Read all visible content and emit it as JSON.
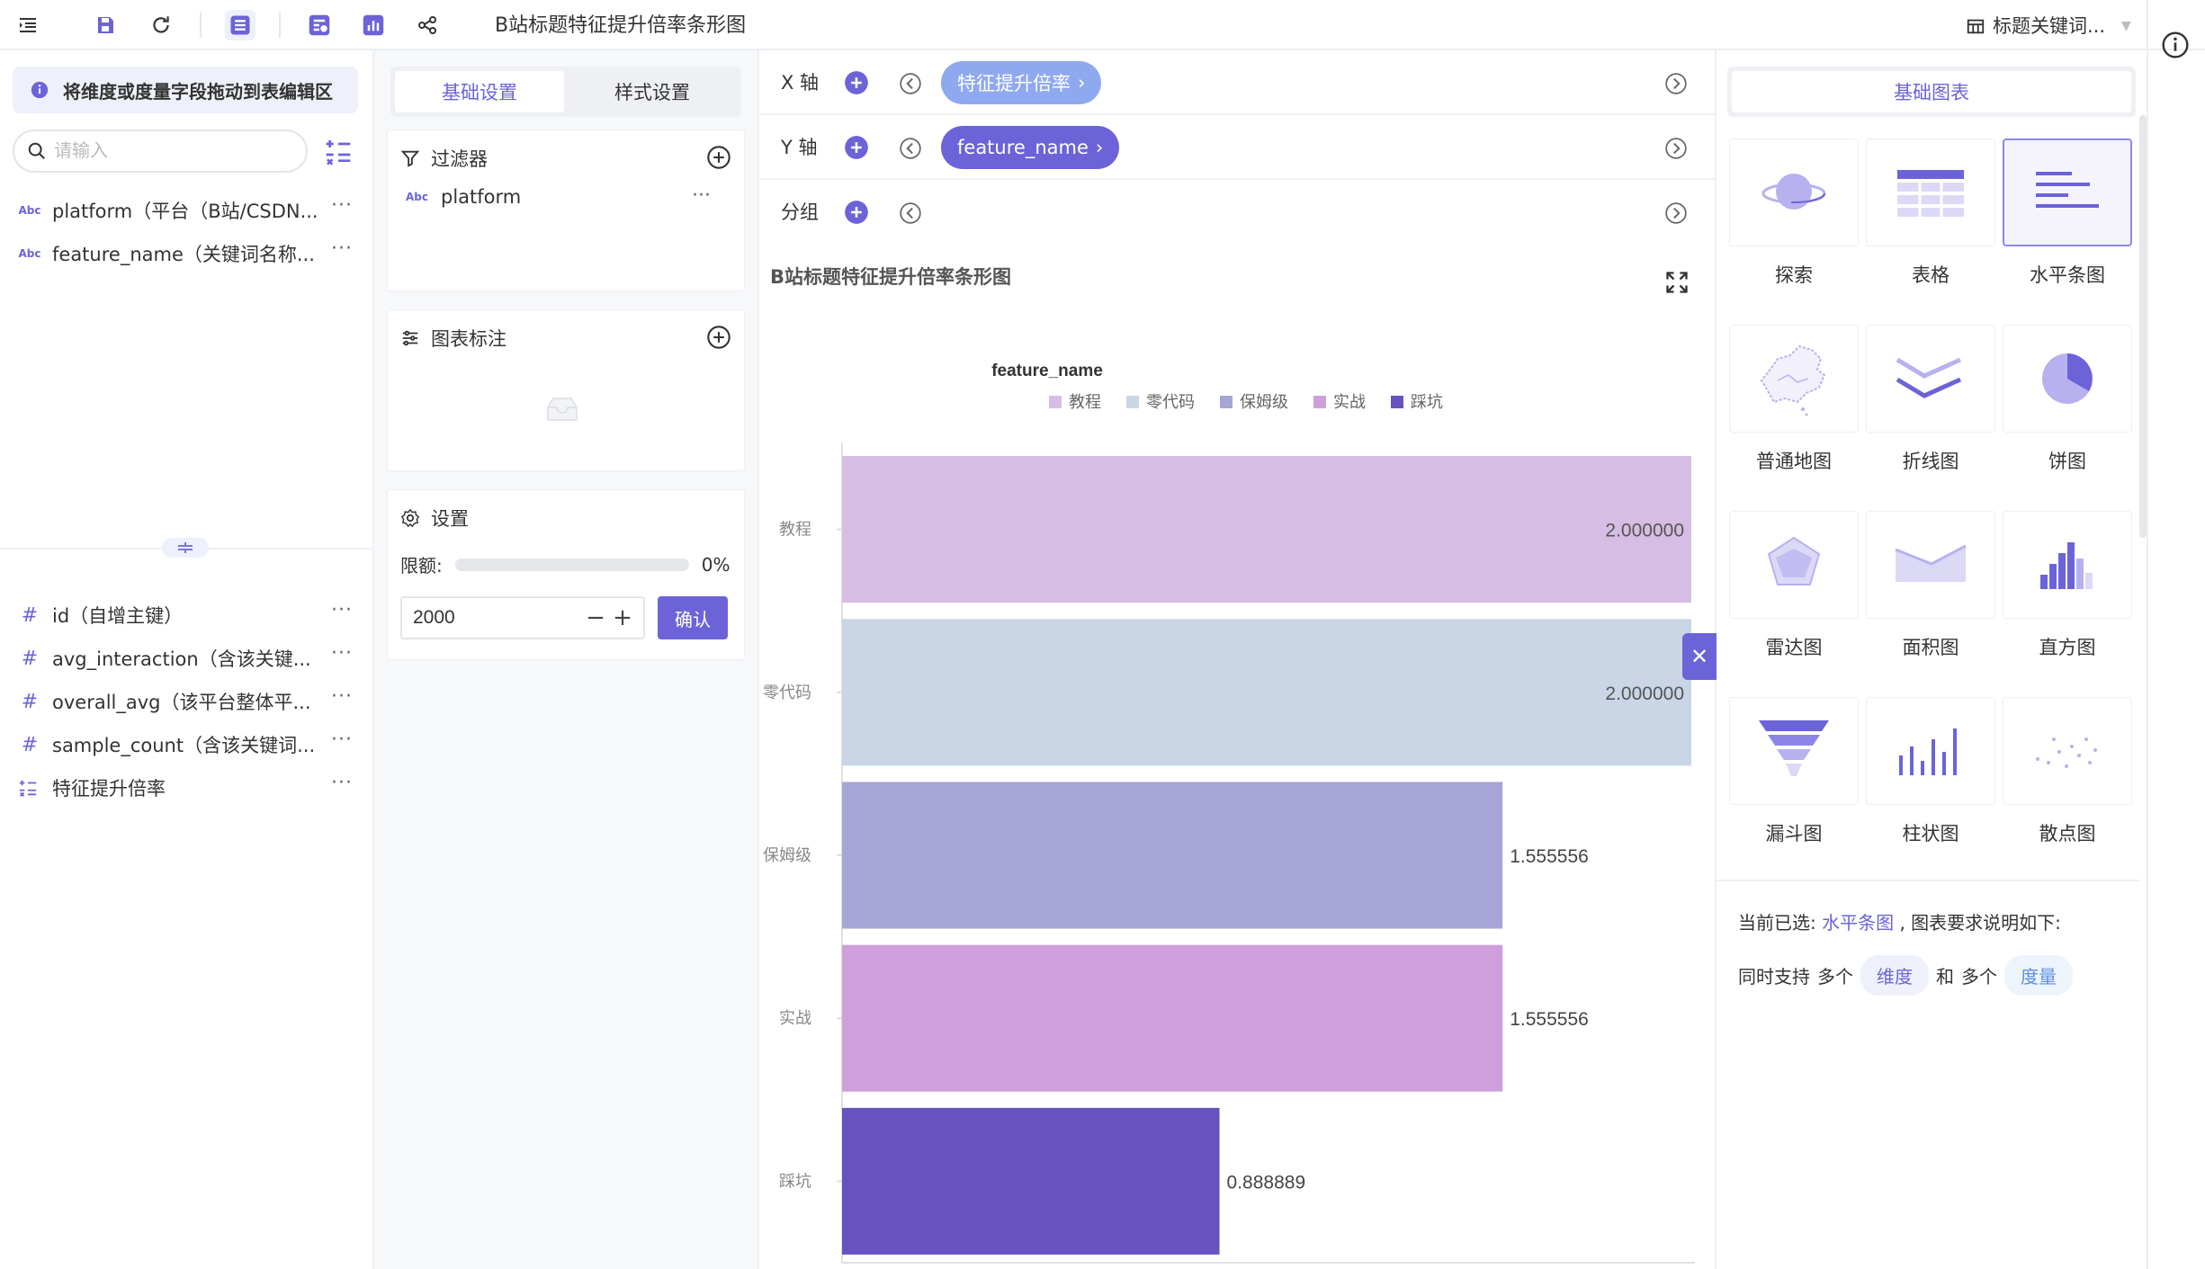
{
  "toolbar": {
    "title": "B站标题特征提升倍率条形图",
    "dataset": "标题关键词..."
  },
  "fields": {
    "hint": "将维度或度量字段拖动到表编辑区",
    "search_placeholder": "请输入",
    "dimensions": [
      {
        "type": "Abc",
        "label": "platform（平台（B站/CSDN..."
      },
      {
        "type": "Abc",
        "label": "feature_name（关键词名称..."
      }
    ],
    "measures": [
      {
        "type": "#",
        "label": "id（自增主键）"
      },
      {
        "type": "#",
        "label": "avg_interaction（含该关键..."
      },
      {
        "type": "#",
        "label": "overall_avg（该平台整体平..."
      },
      {
        "type": "#",
        "label": "sample_count（含该关键词..."
      },
      {
        "type": "calc",
        "label": "特征提升倍率"
      }
    ],
    "more": "···"
  },
  "settings": {
    "tab_basic": "基础设置",
    "tab_style": "样式设置",
    "filter_title": "过滤器",
    "filter_item": "platform",
    "filter_item_type": "Abc",
    "annotation_title": "图表标注",
    "config_title": "设置",
    "quota_label": "限额:",
    "quota_pct": "0%",
    "quota_value": "2000",
    "confirm": "确认"
  },
  "axes": {
    "x_label": "X 轴",
    "x_field": "特征提升倍率",
    "y_label": "Y 轴",
    "y_field": "feature_name",
    "group_label": "分组"
  },
  "chart_data": {
    "type": "bar",
    "orientation": "horizontal",
    "title": "B站标题特征提升倍率条形图",
    "legend_title": "feature_name",
    "legend_position": "top",
    "categories": [
      "教程",
      "零代码",
      "保姆级",
      "实战",
      "踩坑"
    ],
    "values": [
      2.0,
      2.0,
      1.555556,
      1.555556,
      0.888889
    ],
    "value_labels": [
      "2.000000",
      "2.000000",
      "1.555556",
      "1.555556",
      "0.888889"
    ],
    "colors": [
      "#d6bde4",
      "#cad6e6",
      "#a7a5d6",
      "#cf9fdc",
      "#6752c0"
    ],
    "xlim": [
      0,
      2
    ],
    "xticks": [
      "0",
      "0.5",
      "1",
      "1.5",
      "2"
    ],
    "grid": false
  },
  "types": {
    "tab": "基础图表",
    "items": [
      {
        "label": "探索",
        "icon": "planet-icon"
      },
      {
        "label": "表格",
        "icon": "table-icon"
      },
      {
        "label": "水平条图",
        "icon": "horizontal-bar-icon"
      },
      {
        "label": "普通地图",
        "icon": "map-icon"
      },
      {
        "label": "折线图",
        "icon": "line-chart-icon"
      },
      {
        "label": "饼图",
        "icon": "pie-chart-icon"
      },
      {
        "label": "雷达图",
        "icon": "radar-chart-icon"
      },
      {
        "label": "面积图",
        "icon": "area-chart-icon"
      },
      {
        "label": "直方图",
        "icon": "histogram-icon"
      },
      {
        "label": "漏斗图",
        "icon": "funnel-chart-icon"
      },
      {
        "label": "柱状图",
        "icon": "column-chart-icon"
      },
      {
        "label": "散点图",
        "icon": "scatter-chart-icon"
      }
    ],
    "selected_prefix": "当前已选:",
    "selected_name": "水平条图",
    "selected_suffix": ", 图表要求说明如下:",
    "req_1": "同时支持",
    "req_2": "多个",
    "req_dim": "维度",
    "req_3": "和",
    "req_4": "多个",
    "req_measure": "度量"
  },
  "colors": {
    "accent": "#6c63d9",
    "accent_light": "#8fa9f0"
  }
}
